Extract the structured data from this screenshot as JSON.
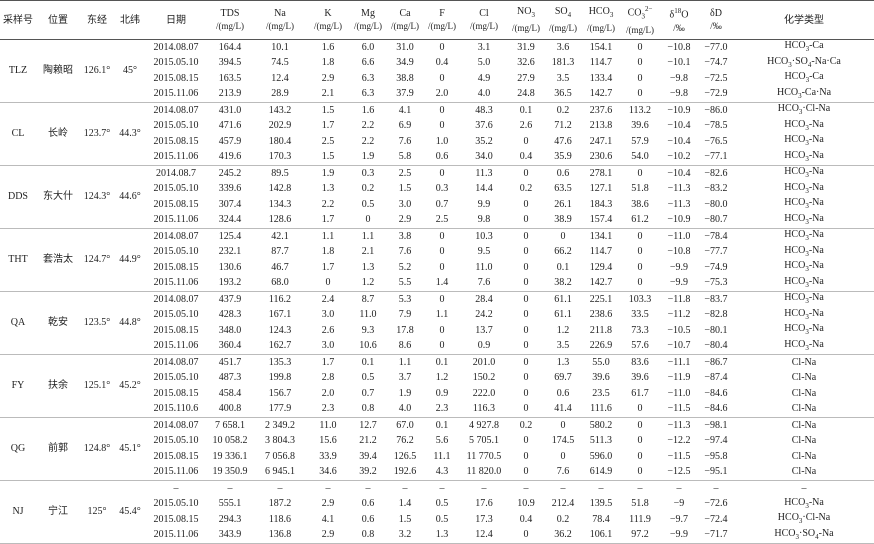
{
  "table": {
    "columns": [
      {
        "name": "采样号"
      },
      {
        "name": "位置"
      },
      {
        "name": "东经"
      },
      {
        "name": "北纬"
      },
      {
        "name": "日期"
      },
      {
        "name": "TDS",
        "unit": "/(mg/L)"
      },
      {
        "name": "Na",
        "unit": "/(mg/L)"
      },
      {
        "name": "K",
        "unit": "/(mg/L)"
      },
      {
        "name": "Mg",
        "unit": "/(mg/L)"
      },
      {
        "name": "Ca",
        "unit": "/(mg/L)"
      },
      {
        "name": "F",
        "unit": "/(mg/L)"
      },
      {
        "name": "Cl",
        "unit": "/(mg/L)"
      },
      {
        "name": "NO",
        "sub": "3",
        "unit": "/(mg/L)"
      },
      {
        "name": "SO",
        "sub": "4",
        "unit": "/(mg/L)"
      },
      {
        "name": "HCO",
        "sub": "3",
        "unit": "/(mg/L)"
      },
      {
        "name": "CO",
        "sub": "3",
        "sup": "2−",
        "unit": "/(mg/L)"
      },
      {
        "name": "δ",
        "sup": "18",
        "after": "O",
        "unit": "/‰"
      },
      {
        "name": "δD",
        "unit": "/‰"
      },
      {
        "name": "化学类型"
      }
    ],
    "groups": [
      {
        "id": "TLZ",
        "location": "陶赖昭",
        "lon": "126.1°",
        "lat": "45°",
        "rows": [
          [
            "2014.08.07",
            "164.4",
            "10.1",
            "1.6",
            "6.0",
            "31.0",
            "0",
            "3.1",
            "31.9",
            "3.6",
            "154.1",
            "0",
            "−10.8",
            "−77.0",
            "HCO3-Ca"
          ],
          [
            "2015.05.10",
            "394.5",
            "74.5",
            "1.8",
            "6.6",
            "34.9",
            "0.4",
            "5.0",
            "32.6",
            "181.3",
            "114.7",
            "0",
            "−10.1",
            "−74.7",
            "HCO3·SO4-Na·Ca"
          ],
          [
            "2015.08.15",
            "163.5",
            "12.4",
            "2.9",
            "6.3",
            "38.8",
            "0",
            "4.9",
            "27.9",
            "3.5",
            "133.4",
            "0",
            "−9.8",
            "−72.5",
            "HCO3-Ca"
          ],
          [
            "2015.11.06",
            "213.9",
            "28.9",
            "2.1",
            "6.3",
            "37.9",
            "2.0",
            "4.0",
            "24.8",
            "36.5",
            "142.7",
            "0",
            "−9.8",
            "−72.9",
            "HCO3-Ca·Na"
          ]
        ]
      },
      {
        "id": "CL",
        "location": "长岭",
        "lon": "123.7°",
        "lat": "44.3°",
        "rows": [
          [
            "2014.08.07",
            "431.0",
            "143.2",
            "1.5",
            "1.6",
            "4.1",
            "0",
            "48.3",
            "0.1",
            "0.2",
            "237.6",
            "113.2",
            "−10.9",
            "−86.0",
            "HCO3·Cl-Na"
          ],
          [
            "2015.05.10",
            "471.6",
            "202.9",
            "1.7",
            "2.2",
            "6.9",
            "0",
            "37.6",
            "2.6",
            "71.2",
            "213.8",
            "39.6",
            "−10.4",
            "−78.5",
            "HCO3-Na"
          ],
          [
            "2015.08.15",
            "457.9",
            "180.4",
            "2.5",
            "2.2",
            "7.6",
            "1.0",
            "35.2",
            "0",
            "47.6",
            "247.1",
            "57.9",
            "−10.4",
            "−76.5",
            "HCO3-Na"
          ],
          [
            "2015.11.06",
            "419.6",
            "170.3",
            "1.5",
            "1.9",
            "5.8",
            "0.6",
            "34.0",
            "0.4",
            "35.9",
            "230.6",
            "54.0",
            "−10.2",
            "−77.1",
            "HCO3-Na"
          ]
        ]
      },
      {
        "id": "DDS",
        "location": "东大什",
        "lon": "124.3°",
        "lat": "44.6°",
        "rows": [
          [
            "2014.08.7",
            "245.2",
            "89.5",
            "1.9",
            "0.3",
            "2.5",
            "0",
            "11.3",
            "0",
            "0.6",
            "278.1",
            "0",
            "−10.4",
            "−82.6",
            "HCO3-Na"
          ],
          [
            "2015.05.10",
            "339.6",
            "142.8",
            "1.3",
            "0.2",
            "1.5",
            "0.3",
            "14.4",
            "0.2",
            "63.5",
            "127.1",
            "51.8",
            "−11.3",
            "−83.2",
            "HCO3-Na"
          ],
          [
            "2015.08.15",
            "307.4",
            "134.3",
            "2.2",
            "0.5",
            "3.0",
            "0.7",
            "9.9",
            "0",
            "26.1",
            "184.3",
            "38.6",
            "−11.3",
            "−80.0",
            "HCO3-Na"
          ],
          [
            "2015.11.06",
            "324.4",
            "128.6",
            "1.7",
            "0",
            "2.9",
            "2.5",
            "9.8",
            "0",
            "38.9",
            "157.4",
            "61.2",
            "−10.9",
            "−80.7",
            "HCO3-Na"
          ]
        ]
      },
      {
        "id": "THT",
        "location": "套浩太",
        "lon": "124.7°",
        "lat": "44.9°",
        "rows": [
          [
            "2014.08.07",
            "125.4",
            "42.1",
            "1.1",
            "1.1",
            "3.8",
            "0",
            "10.3",
            "0",
            "0",
            "134.1",
            "0",
            "−11.0",
            "−78.4",
            "HCO3-Na"
          ],
          [
            "2015.05.10",
            "232.1",
            "87.7",
            "1.8",
            "2.1",
            "7.6",
            "0",
            "9.5",
            "0",
            "66.2",
            "114.7",
            "0",
            "−10.8",
            "−77.7",
            "HCO3-Na"
          ],
          [
            "2015.08.15",
            "130.6",
            "46.7",
            "1.7",
            "1.3",
            "5.2",
            "0",
            "11.0",
            "0",
            "0.1",
            "129.4",
            "0",
            "−9.9",
            "−74.9",
            "HCO3-Na"
          ],
          [
            "2015.11.06",
            "193.2",
            "68.0",
            "0",
            "1.2",
            "5.5",
            "1.4",
            "7.6",
            "0",
            "38.2",
            "142.7",
            "0",
            "−9.9",
            "−75.3",
            "HCO3-Na"
          ]
        ]
      },
      {
        "id": "QA",
        "location": "乾安",
        "lon": "123.5°",
        "lat": "44.8°",
        "rows": [
          [
            "2014.08.07",
            "437.9",
            "116.2",
            "2.4",
            "8.7",
            "5.3",
            "0",
            "28.4",
            "0",
            "61.1",
            "225.1",
            "103.3",
            "−11.8",
            "−83.7",
            "HCO3-Na"
          ],
          [
            "2015.05.10",
            "428.3",
            "167.1",
            "3.0",
            "11.0",
            "7.9",
            "1.1",
            "24.2",
            "0",
            "61.1",
            "238.6",
            "33.5",
            "−11.2",
            "−82.8",
            "HCO3-Na"
          ],
          [
            "2015.08.15",
            "348.0",
            "124.3",
            "2.6",
            "9.3",
            "17.8",
            "0",
            "13.7",
            "0",
            "1.2",
            "211.8",
            "73.3",
            "−10.5",
            "−80.1",
            "HCO3-Na"
          ],
          [
            "2015.11.06",
            "360.4",
            "162.7",
            "3.0",
            "10.6",
            "8.6",
            "0",
            "0.9",
            "0",
            "3.5",
            "226.9",
            "57.6",
            "−10.7",
            "−80.4",
            "HCO3-Na"
          ]
        ]
      },
      {
        "id": "FY",
        "location": "扶余",
        "lon": "125.1°",
        "lat": "45.2°",
        "rows": [
          [
            "2014.08.07",
            "451.7",
            "135.3",
            "1.7",
            "0.1",
            "1.1",
            "0.1",
            "201.0",
            "0",
            "1.3",
            "55.0",
            "83.6",
            "−11.1",
            "−86.7",
            "Cl-Na"
          ],
          [
            "2015.05.10",
            "487.3",
            "199.8",
            "2.8",
            "0.5",
            "3.7",
            "1.2",
            "150.2",
            "0",
            "69.7",
            "39.6",
            "39.6",
            "−11.9",
            "−87.4",
            "Cl-Na"
          ],
          [
            "2015.08.15",
            "458.4",
            "156.7",
            "2.0",
            "0.7",
            "1.9",
            "0.9",
            "222.0",
            "0",
            "0.6",
            "23.5",
            "61.7",
            "−11.0",
            "−84.6",
            "Cl-Na"
          ],
          [
            "2015.110.6",
            "400.8",
            "177.9",
            "2.3",
            "0.8",
            "4.0",
            "2.3",
            "116.3",
            "0",
            "41.4",
            "111.6",
            "0",
            "−11.5",
            "−84.6",
            "Cl-Na"
          ]
        ]
      },
      {
        "id": "QG",
        "location": "前郭",
        "lon": "124.8°",
        "lat": "45.1°",
        "rows": [
          [
            "2014.08.07",
            "7 658.1",
            "2 349.2",
            "11.0",
            "12.7",
            "67.0",
            "0.1",
            "4 927.8",
            "0.2",
            "0",
            "580.2",
            "0",
            "−11.3",
            "−98.1",
            "Cl-Na"
          ],
          [
            "2015.05.10",
            "10 058.2",
            "3 804.3",
            "15.6",
            "21.2",
            "76.2",
            "5.6",
            "5 705.1",
            "0",
            "174.5",
            "511.3",
            "0",
            "−12.2",
            "−97.4",
            "Cl-Na"
          ],
          [
            "2015.08.15",
            "19 336.1",
            "7 056.8",
            "33.9",
            "39.4",
            "126.5",
            "11.1",
            "11 770.5",
            "0",
            "0",
            "596.0",
            "0",
            "−11.5",
            "−95.8",
            "Cl-Na"
          ],
          [
            "2015.11.06",
            "19 350.9",
            "6 945.1",
            "34.6",
            "39.2",
            "192.6",
            "4.3",
            "11 820.0",
            "0",
            "7.6",
            "614.9",
            "0",
            "−12.5",
            "−95.1",
            "Cl-Na"
          ]
        ]
      },
      {
        "id": "NJ",
        "location": "宁江",
        "lon": "125°",
        "lat": "45.4°",
        "rows": [
          [
            "–",
            "–",
            "–",
            "–",
            "–",
            "–",
            "–",
            "–",
            "–",
            "–",
            "–",
            "–",
            "–",
            "–",
            "–"
          ],
          [
            "2015.05.10",
            "555.1",
            "187.2",
            "2.9",
            "0.6",
            "1.4",
            "0.5",
            "17.6",
            "10.9",
            "212.4",
            "139.5",
            "51.8",
            "−9",
            "−72.6",
            "HCO3-Na"
          ],
          [
            "2015.08.15",
            "294.3",
            "118.6",
            "4.1",
            "0.6",
            "1.5",
            "0.5",
            "17.3",
            "0.4",
            "0.2",
            "78.4",
            "111.9",
            "−9.7",
            "−72.4",
            "HCO3·Cl-Na"
          ],
          [
            "2015.11.06",
            "343.9",
            "136.8",
            "2.9",
            "0.8",
            "3.2",
            "1.3",
            "12.4",
            "0",
            "36.2",
            "106.1",
            "97.2",
            "−9.9",
            "−71.7",
            "HCO3·SO4-Na"
          ]
        ]
      }
    ]
  }
}
